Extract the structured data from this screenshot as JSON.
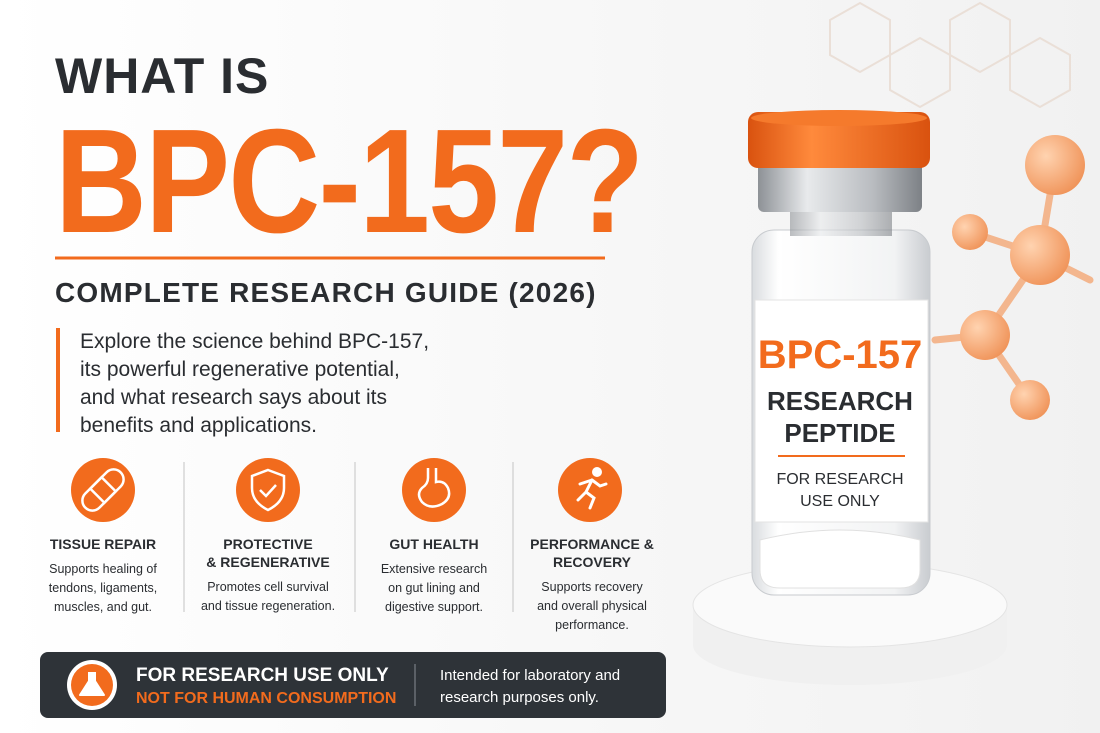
{
  "header": {
    "kicker": "WHAT IS",
    "title": "BPC-157?",
    "subtitle": "COMPLETE RESEARCH GUIDE (2026)"
  },
  "intro": [
    "Explore the science behind BPC-157,",
    "its powerful regenerative potential,",
    "and what research says about its",
    "benefits and applications."
  ],
  "features": [
    {
      "title": [
        "TISSUE REPAIR"
      ],
      "description": [
        "Supports healing of",
        "tendons, ligaments,",
        "muscles, and gut."
      ]
    },
    {
      "title": [
        "PROTECTIVE",
        "& REGENERATIVE"
      ],
      "description": [
        "Promotes cell survival",
        "and tissue regeneration."
      ]
    },
    {
      "title": [
        "GUT HEALTH"
      ],
      "description": [
        "Extensive research",
        "on gut lining and",
        "digestive support."
      ]
    },
    {
      "title": [
        "PERFORMANCE &",
        "RECOVERY"
      ],
      "description": [
        "Supports recovery",
        "and overall physical",
        "performance."
      ]
    }
  ],
  "vial": {
    "name": "BPC-157",
    "label": [
      "RESEARCH",
      "PEPTIDE"
    ],
    "note": [
      "FOR RESEARCH",
      "USE ONLY"
    ]
  },
  "banner": {
    "title": "FOR RESEARCH USE ONLY",
    "subtitle": "NOT FOR HUMAN CONSUMPTION",
    "note": [
      "Intended for laboratory and",
      "research purposes only."
    ]
  }
}
